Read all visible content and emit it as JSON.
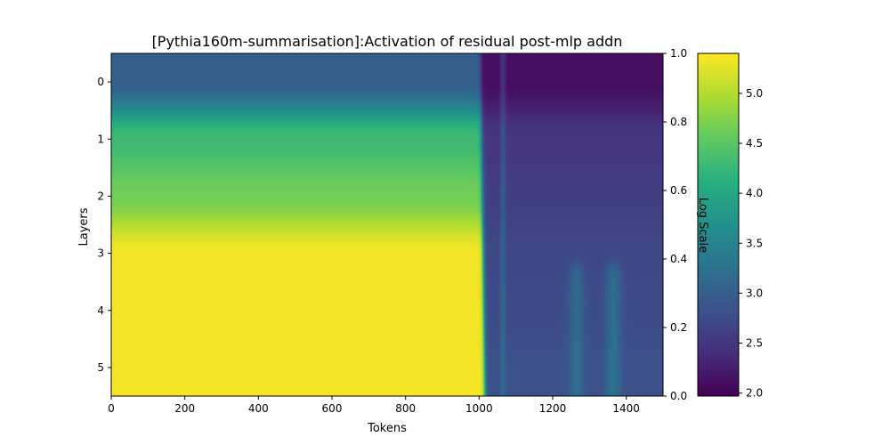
{
  "chart_data": {
    "type": "heatmap",
    "title": "[Pythia160m-summarisation]:Activation of residual post-mlp addn",
    "xlabel": "Tokens",
    "ylabel": "Layers",
    "xlim": [
      0,
      1500
    ],
    "ylim": [
      5.5,
      -0.5
    ],
    "x_ticks": [
      0,
      200,
      400,
      600,
      800,
      1000,
      1200,
      1400
    ],
    "y_ticks": [
      0,
      1,
      2,
      3,
      4,
      5
    ],
    "layers": [
      0,
      1,
      2,
      3,
      4,
      5
    ],
    "colormap": "viridis",
    "colorbar": {
      "label": "Log Scale",
      "range": [
        1.97,
        5.4
      ],
      "ticks": [
        2.0,
        2.5,
        3.0,
        3.5,
        4.0,
        4.5,
        5.0
      ]
    },
    "twin_axis": {
      "ylim": [
        0.0,
        1.0
      ],
      "ticks": [
        0.0,
        0.2,
        0.4,
        0.6,
        0.8,
        1.0
      ]
    },
    "transition_token": 1010,
    "layer_values_before_transition": [
      3.0,
      4.3,
      4.65,
      5.35,
      5.35,
      5.35
    ],
    "layer_values_after_transition": [
      2.1,
      2.5,
      2.6,
      2.7,
      2.75,
      2.8
    ],
    "bright_streaks": [
      {
        "token": 1065,
        "value_delta": 0.35
      },
      {
        "token": 1265,
        "value_delta": 0.4,
        "layers": [
          4,
          5
        ]
      },
      {
        "token": 1365,
        "value_delta": 0.45,
        "layers": [
          4,
          5
        ]
      }
    ],
    "grid": false
  }
}
